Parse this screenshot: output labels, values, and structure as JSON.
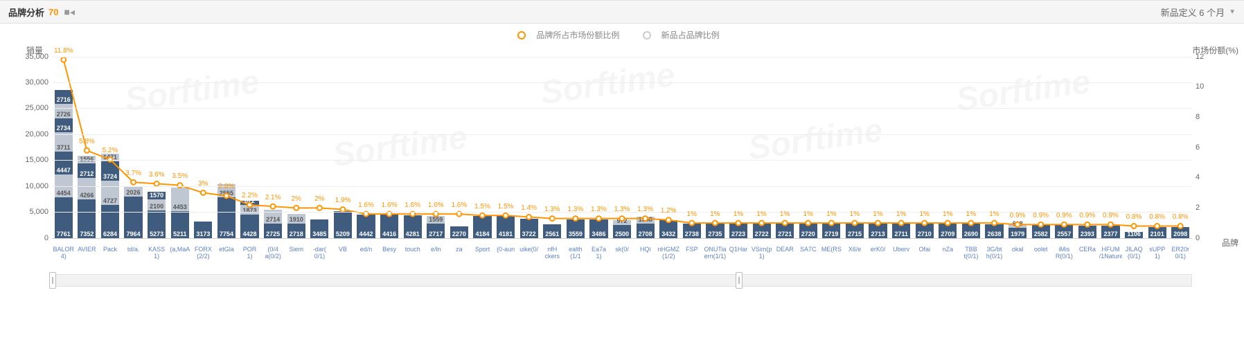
{
  "header": {
    "title": "品牌分析",
    "count": "70",
    "right_label": "新品定义 6 个月"
  },
  "legend": {
    "series1": "品牌所占市场份额比例",
    "series2": "新品占品牌比例"
  },
  "axis": {
    "y_left_title": "销量",
    "y_right_title": "市场份额(%)",
    "x_end_label": "品牌",
    "y_left_max": 35000,
    "y_left_step": 5000,
    "y_right_max": 12,
    "y_right_step": 2
  },
  "colors": {
    "bar_dark": "#3f5b7d",
    "bar_light": "#bfc7d2",
    "line": "#ff9500",
    "line_fill": "#ff9500",
    "grid": "#eeeeee",
    "text_orange": "#ff9500",
    "xlabel": "#5b7fc7"
  },
  "watermark": "Sorftime",
  "series": [
    {
      "name": "BALOR",
      "sub": "4)",
      "pct": 11.8,
      "vals": [
        7761,
        4454,
        4447,
        3711,
        2734,
        2726,
        2716
      ]
    },
    {
      "name": "AVIER",
      "sub": "",
      "pct": 5.8,
      "vals": [
        7352,
        4266,
        2712,
        1556
      ]
    },
    {
      "name": "Pack",
      "sub": "",
      "pct": 5.2,
      "vals": [
        6284,
        4727,
        3724,
        1471
      ]
    },
    {
      "name": "td/a.",
      "sub": "",
      "pct": 3.7,
      "vals": [
        7964,
        2026
      ]
    },
    {
      "name": "KASS",
      "sub": "1)",
      "pct": 3.6,
      "vals": [
        5273,
        2100,
        1570
      ]
    },
    {
      "name": "(a,MaA",
      "sub": "",
      "pct": 3.5,
      "vals": [
        5211,
        4453
      ]
    },
    {
      "name": "FORX",
      "sub": "(2/2)",
      "pct": 3.0,
      "vals": [
        3173
      ]
    },
    {
      "name": "etGla",
      "sub": "",
      "pct": 2.8,
      "vals": [
        7754,
        2555
      ]
    },
    {
      "name": "POR",
      "sub": "1)",
      "pct": 2.2,
      "vals": [
        4428,
        1873,
        822
      ]
    },
    {
      "name": "(0/4",
      "sub": "a(0/2)",
      "pct": 2.1,
      "vals": [
        2725,
        2714
      ]
    },
    {
      "name": "Siem",
      "sub": "",
      "pct": 2.0,
      "vals": [
        2718,
        1910
      ]
    },
    {
      "name": "-dar(",
      "sub": "0/1)",
      "pct": 2.0,
      "vals": [
        3485
      ]
    },
    {
      "name": "VB",
      "sub": "",
      "pct": 1.9,
      "vals": [
        5209
      ]
    },
    {
      "name": "ed/n",
      "sub": "",
      "pct": 1.6,
      "vals": [
        4442
      ]
    },
    {
      "name": "Besy",
      "sub": "",
      "pct": 1.6,
      "vals": [
        4416
      ]
    },
    {
      "name": "touch",
      "sub": "",
      "pct": 1.6,
      "vals": [
        4281
      ]
    },
    {
      "name": "e/ln",
      "sub": "",
      "pct": 1.6,
      "vals": [
        2717,
        1559
      ]
    },
    {
      "name": "za",
      "sub": "",
      "pct": 1.6,
      "vals": [
        2270
      ]
    },
    {
      "name": "Sport",
      "sub": "",
      "pct": 1.5,
      "vals": [
        4184
      ]
    },
    {
      "name": "(0-aun",
      "sub": "",
      "pct": 1.5,
      "vals": [
        4181
      ]
    },
    {
      "name": "uike(0/",
      "sub": "",
      "pct": 1.4,
      "vals": [
        3722
      ]
    },
    {
      "name": "nfH",
      "sub": "ckers",
      "pct": 1.3,
      "vals": [
        2561
      ]
    },
    {
      "name": "ealth",
      "sub": "(1/1",
      "pct": 1.3,
      "vals": [
        3559
      ]
    },
    {
      "name": "Ea7a",
      "sub": "1)",
      "pct": 1.3,
      "vals": [
        3486
      ]
    },
    {
      "name": "sk(0/",
      "sub": "",
      "pct": 1.3,
      "vals": [
        2500,
        972
      ]
    },
    {
      "name": "HQi",
      "sub": "",
      "pct": 1.3,
      "vals": [
        2708,
        1348
      ]
    },
    {
      "name": "nHGMZ",
      "sub": "(1/2)",
      "pct": 1.2,
      "vals": [
        3432
      ]
    },
    {
      "name": "FSP",
      "sub": "",
      "pct": 1.0,
      "vals": [
        2738
      ]
    },
    {
      "name": "ONUTia",
      "sub": "ern(1/1)",
      "pct": 1.0,
      "vals": [
        2735
      ]
    },
    {
      "name": "Q1Har",
      "sub": "",
      "pct": 1.0,
      "vals": [
        2723
      ]
    },
    {
      "name": "VSim(p",
      "sub": "1)",
      "pct": 1.0,
      "vals": [
        2722
      ]
    },
    {
      "name": "DEAR",
      "sub": "",
      "pct": 1.0,
      "vals": [
        2721
      ]
    },
    {
      "name": "SA7C",
      "sub": "",
      "pct": 1.0,
      "vals": [
        2720
      ]
    },
    {
      "name": "ME(RS",
      "sub": "",
      "pct": 1.0,
      "vals": [
        2719
      ]
    },
    {
      "name": "X6/e",
      "sub": "",
      "pct": 1.0,
      "vals": [
        2715
      ]
    },
    {
      "name": "erK0/",
      "sub": "",
      "pct": 1.0,
      "vals": [
        2713
      ]
    },
    {
      "name": "Uberv",
      "sub": "",
      "pct": 1.0,
      "vals": [
        2711
      ]
    },
    {
      "name": "Ofai",
      "sub": "",
      "pct": 1.0,
      "vals": [
        2710
      ]
    },
    {
      "name": "nZa",
      "sub": "",
      "pct": 1.0,
      "vals": [
        2709
      ]
    },
    {
      "name": "TBB",
      "sub": "t(0/1)",
      "pct": 1.0,
      "vals": [
        2690
      ]
    },
    {
      "name": "3G/bt",
      "sub": "h(0/1)",
      "pct": 1.0,
      "vals": [
        2638
      ]
    },
    {
      "name": "okal",
      "sub": "",
      "pct": 0.9,
      "vals": [
        1979,
        618
      ]
    },
    {
      "name": "oolet",
      "sub": "",
      "pct": 0.9,
      "vals": [
        2582
      ]
    },
    {
      "name": "iMis",
      "sub": "R(0/1)",
      "pct": 0.9,
      "vals": [
        2557
      ]
    },
    {
      "name": "CERa",
      "sub": "",
      "pct": 0.9,
      "vals": [
        2393
      ]
    },
    {
      "name": "HFUM",
      "sub": "/1Nature",
      "pct": 0.9,
      "vals": [
        2377
      ]
    },
    {
      "name": "JILAQ",
      "sub": "(0/1)",
      "pct": 0.8,
      "vals": [
        1106
      ]
    },
    {
      "name": "sUPP",
      "sub": "1)",
      "pct": 0.8,
      "vals": [
        2101
      ]
    },
    {
      "name": "ER20r",
      "sub": "0/1)",
      "pct": 0.8,
      "vals": [
        2098
      ]
    }
  ]
}
